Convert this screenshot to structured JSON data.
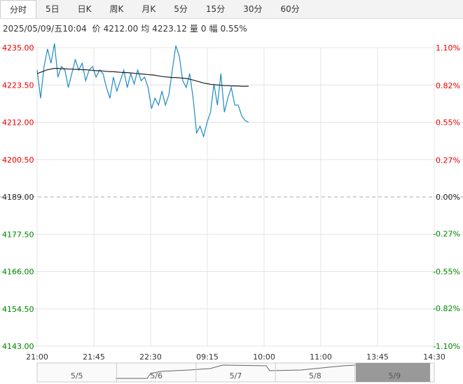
{
  "header": {
    "tabs": [
      "分时",
      "5日",
      "日K",
      "周K",
      "月K",
      "5分",
      "15分",
      "30分",
      "60分"
    ],
    "datetime": "2025/05/09/五10:04",
    "stats": [
      {
        "label": "价",
        "value": "4212.00"
      },
      {
        "label": "均",
        "value": "4223.12"
      },
      {
        "label": "量",
        "value": "0"
      },
      {
        "label": "幅",
        "value": "0.55%"
      }
    ]
  },
  "chart_data": {
    "type": "line",
    "x": [
      0,
      2.75,
      5.5,
      8.25,
      11,
      13.75,
      16.5,
      19.25,
      22,
      24.75,
      27.5,
      30.25,
      33,
      35.75,
      38.5,
      41.25,
      44,
      46.75,
      49.5,
      52.25,
      55,
      57.75,
      60.5,
      63.25,
      66,
      68.75,
      71.5,
      74.25,
      77,
      79.75,
      82.5,
      85.25,
      88,
      90.75,
      93.5,
      96.25,
      99,
      101.75,
      104.5,
      107.25,
      110,
      112.75,
      115.5,
      118.25,
      121,
      123.75,
      126.5,
      129.25,
      132,
      134.75,
      137.5,
      140.25,
      143,
      145.75,
      148.5,
      151.25,
      154,
      156.75,
      159.5,
      162.25,
      165,
      167.75
    ],
    "series": [
      {
        "name": "价",
        "color": "#1e8bc3",
        "values": [
          4228.1,
          4219.4,
          4229.2,
          4234.6,
          4230.2,
          4236.3,
          4225.9,
          4229.2,
          4228.1,
          4222.7,
          4227.0,
          4231.3,
          4228.1,
          4230.2,
          4224.8,
          4228.1,
          4229.2,
          4225.9,
          4228.1,
          4227.0,
          4222.7,
          4219.4,
          4225.9,
          4221.6,
          4224.8,
          4228.1,
          4222.7,
          4227.0,
          4223.8,
          4228.1,
          4224.8,
          4225.9,
          4222.7,
          4216.2,
          4219.4,
          4217.3,
          4221.6,
          4217.3,
          4220.5,
          4228.1,
          4235.6,
          4232.4,
          4224.8,
          4222.7,
          4227.0,
          4219.4,
          4208.7,
          4210.8,
          4207.6,
          4211.9,
          4215.1,
          4223.8,
          4217.3,
          4227.0,
          4215.1,
          4219.4,
          4222.7,
          4217.3,
          4217.3,
          4214.0,
          4212.5,
          4212.0
        ]
      },
      {
        "name": "均",
        "color": "#222222",
        "values": [
          4227.0,
          4227.4,
          4227.8,
          4228.2,
          4228.4,
          4228.6,
          4228.6,
          4228.5,
          4228.5,
          4228.4,
          4228.4,
          4228.3,
          4228.3,
          4228.2,
          4228.2,
          4228.1,
          4228.0,
          4227.9,
          4227.9,
          4227.8,
          4227.7,
          4227.6,
          4227.6,
          4227.5,
          4227.4,
          4227.3,
          4227.3,
          4227.2,
          4227.1,
          4227.0,
          4226.9,
          4226.8,
          4226.7,
          4226.6,
          4226.5,
          4226.3,
          4226.1,
          4226.0,
          4225.9,
          4225.8,
          4225.8,
          4225.7,
          4225.6,
          4225.5,
          4225.3,
          4225.0,
          4224.7,
          4224.4,
          4224.1,
          4223.9,
          4223.7,
          4223.6,
          4223.5,
          4223.4,
          4223.3,
          4223.3,
          4223.2,
          4223.2,
          4223.2,
          4223.1,
          4223.1,
          4223.12
        ]
      }
    ],
    "xlim": [
      0,
      315
    ],
    "xticks": [
      {
        "value": 0,
        "label": "21:00"
      },
      {
        "value": 45,
        "label": "21:45"
      },
      {
        "value": 90,
        "label": "22:30"
      },
      {
        "value": 135,
        "label": "09:15"
      },
      {
        "value": 180,
        "label": "10:00"
      },
      {
        "value": 225,
        "label": "11:00"
      },
      {
        "value": 270,
        "label": "13:45"
      },
      {
        "value": 315,
        "label": "14:30"
      }
    ],
    "ylim": [
      4143,
      4235
    ],
    "yticks": [
      {
        "value": 4235,
        "label": "4235.00"
      },
      {
        "value": 4223.5,
        "label": "4223.50"
      },
      {
        "value": 4212,
        "label": "4212.00"
      },
      {
        "value": 4200.5,
        "label": "4200.50"
      },
      {
        "value": 4189,
        "label": "4189.00"
      },
      {
        "value": 4177.5,
        "label": "4177.50"
      },
      {
        "value": 4166,
        "label": "4166.00"
      },
      {
        "value": 4154.5,
        "label": "4154.50"
      },
      {
        "value": 4143,
        "label": "4143.00"
      }
    ],
    "y2lim": [
      -1.1,
      1.1
    ],
    "y2ticks": [
      {
        "value": 1.1,
        "label": "1.10%"
      },
      {
        "value": 0.82,
        "label": "0.82%"
      },
      {
        "value": 0.55,
        "label": "0.55%"
      },
      {
        "value": 0.27,
        "label": "0.27%"
      },
      {
        "value": 0,
        "label": "0.00%"
      },
      {
        "value": -0.27,
        "label": "-0.27%"
      },
      {
        "value": -0.55,
        "label": "-0.55%"
      },
      {
        "value": -0.82,
        "label": "-0.82%"
      },
      {
        "value": -1.1,
        "label": "-1.10%"
      }
    ],
    "base": 4189,
    "grid": true,
    "navigator": [
      "5/5",
      "5/6",
      "5/7",
      "5/8",
      "5/9"
    ]
  }
}
